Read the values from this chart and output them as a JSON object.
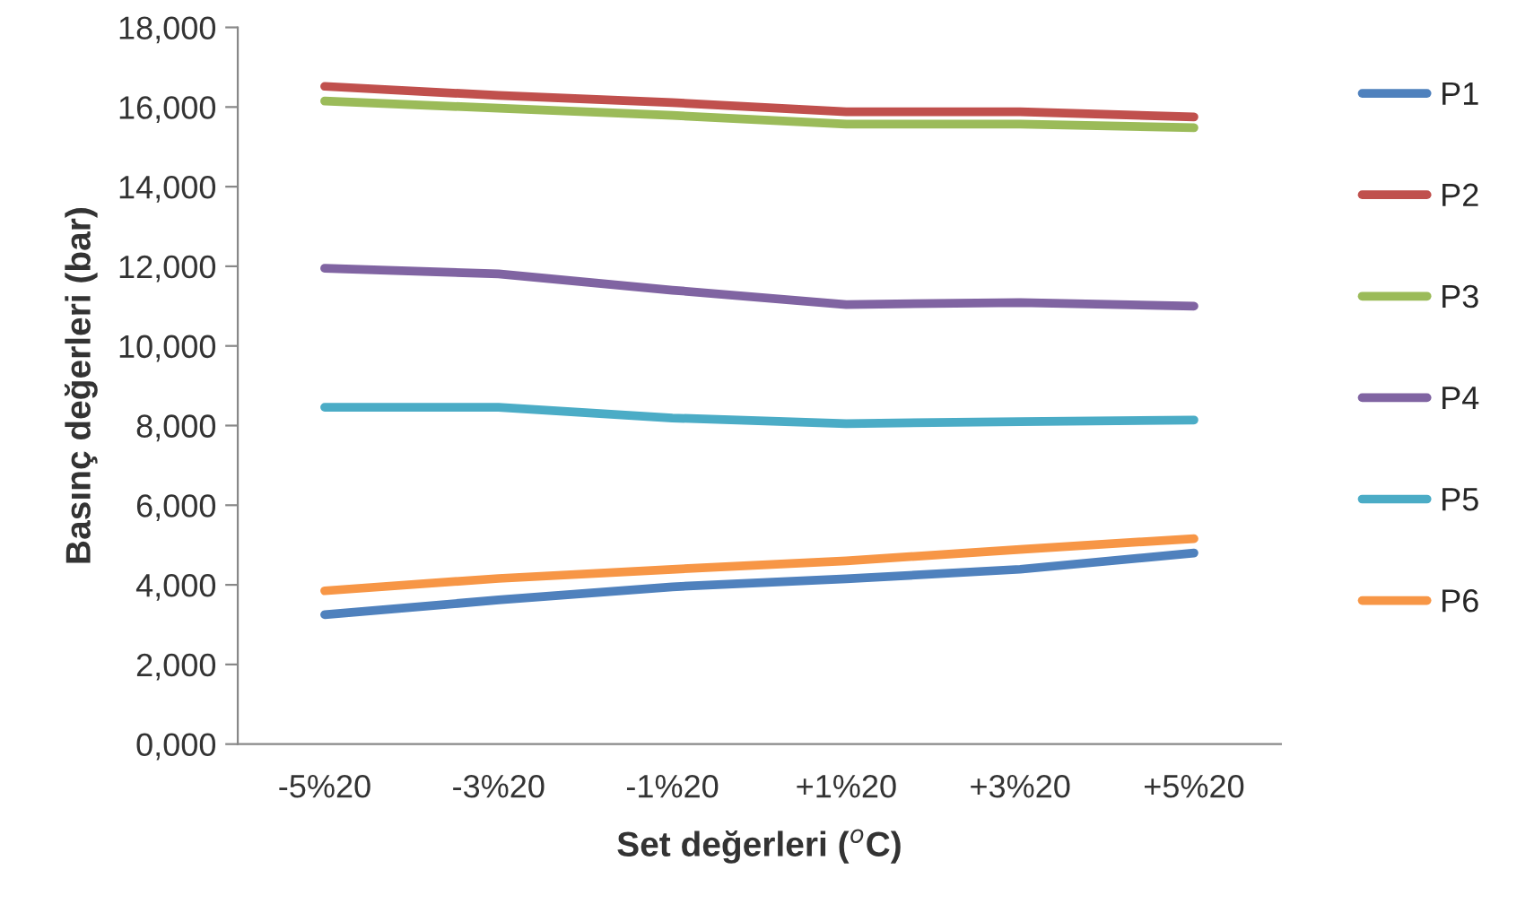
{
  "chart_data": {
    "type": "line",
    "xlabel": "Set değerleri ($^{o}$C)",
    "ylabel": "Basınç değerleri (bar)",
    "categories": [
      "-5%20",
      "-3%20",
      "-1%20",
      "+1%20",
      "+3%20",
      "+5%20"
    ],
    "series": [
      {
        "name": "P1",
        "color": "#4f81bd",
        "values": [
          3250,
          3620,
          3950,
          4150,
          4390,
          4800
        ]
      },
      {
        "name": "P2",
        "color": "#c0504d",
        "values": [
          16520,
          16290,
          16110,
          15880,
          15880,
          15750
        ]
      },
      {
        "name": "P3",
        "color": "#9bbb59",
        "values": [
          16150,
          15970,
          15790,
          15570,
          15570,
          15480
        ]
      },
      {
        "name": "P4",
        "color": "#8064a2",
        "values": [
          11950,
          11810,
          11400,
          11040,
          11090,
          11000
        ]
      },
      {
        "name": "P5",
        "color": "#4bacc6",
        "values": [
          8460,
          8460,
          8190,
          8050,
          8100,
          8140
        ]
      },
      {
        "name": "P6",
        "color": "#f79646",
        "values": [
          3850,
          4160,
          4390,
          4600,
          4890,
          5160
        ]
      }
    ],
    "ylim": [
      0,
      18000
    ],
    "yticks": [
      {
        "value": 0,
        "label": "0,000"
      },
      {
        "value": 2000,
        "label": "2,000"
      },
      {
        "value": 4000,
        "label": "4,000"
      },
      {
        "value": 6000,
        "label": "6,000"
      },
      {
        "value": 8000,
        "label": "8,000"
      },
      {
        "value": 10000,
        "label": "10,000"
      },
      {
        "value": 12000,
        "label": "12,000"
      },
      {
        "value": 14000,
        "label": "14,000"
      },
      {
        "value": 16000,
        "label": "16,000"
      },
      {
        "value": 18000,
        "label": "18,000"
      }
    ],
    "legend": "right",
    "grid": false,
    "marker": "none",
    "line_style": "solid"
  }
}
